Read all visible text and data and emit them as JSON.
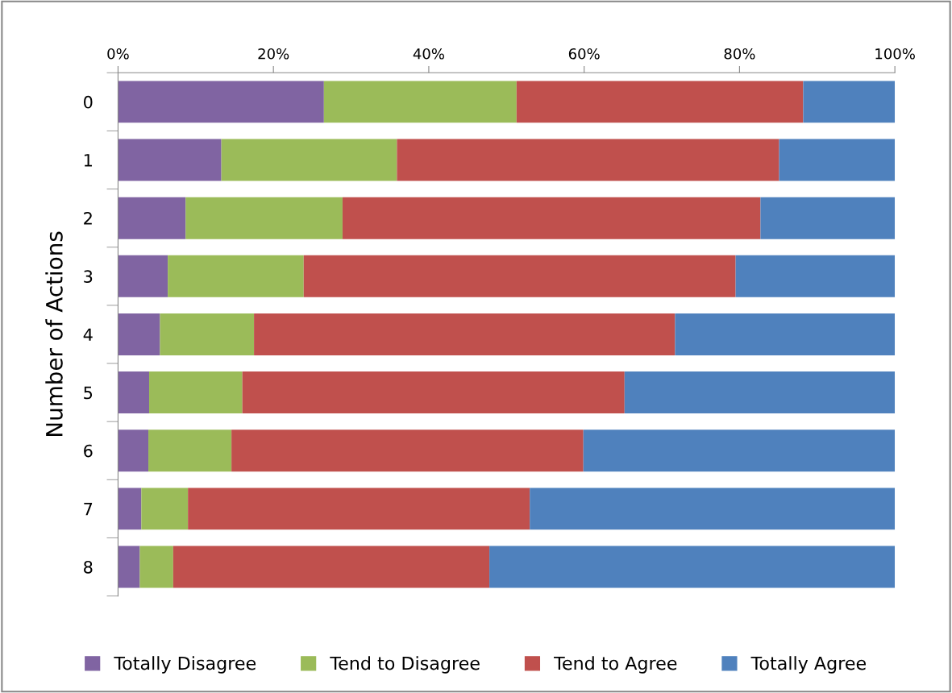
{
  "chart_data": {
    "type": "bar",
    "orientation": "horizontal",
    "stacked": true,
    "ylabel": "Number of Actions",
    "categories": [
      "0",
      "1",
      "2",
      "3",
      "4",
      "5",
      "6",
      "7",
      "8"
    ],
    "series": [
      {
        "name": "Totally Disagree",
        "color": "#8064a2",
        "values": [
          26.5,
          13.3,
          8.7,
          6.4,
          5.4,
          4.0,
          3.9,
          3.0,
          2.8
        ]
      },
      {
        "name": "Tend to Disagree",
        "color": "#9bbb59",
        "values": [
          24.8,
          22.6,
          20.2,
          17.5,
          12.1,
          12.0,
          10.7,
          6.0,
          4.3
        ]
      },
      {
        "name": "Tend to Agree",
        "color": "#c0504d",
        "values": [
          36.9,
          49.2,
          53.8,
          55.6,
          54.2,
          49.2,
          45.3,
          44.0,
          40.7
        ]
      },
      {
        "name": "Totally Agree",
        "color": "#4f81bd",
        "values": [
          11.8,
          14.9,
          17.3,
          20.5,
          28.3,
          34.8,
          40.1,
          47.0,
          52.2
        ]
      }
    ],
    "xlim": [
      0,
      100
    ],
    "xticks": [
      {
        "value": 0,
        "label": "0%"
      },
      {
        "value": 20,
        "label": "20%"
      },
      {
        "value": 40,
        "label": "40%"
      },
      {
        "value": 60,
        "label": "60%"
      },
      {
        "value": 80,
        "label": "80%"
      },
      {
        "value": 100,
        "label": "100%"
      }
    ],
    "grid": false,
    "legend": "bottom"
  }
}
